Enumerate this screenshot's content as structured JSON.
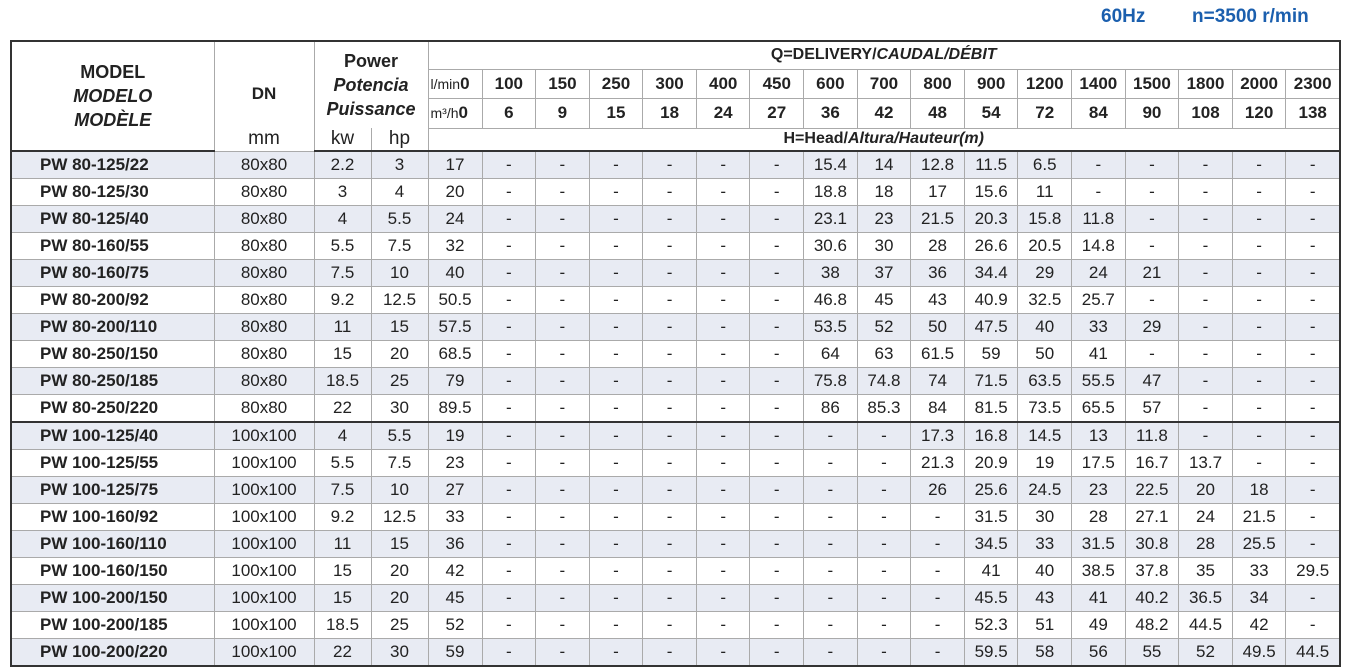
{
  "top": {
    "frequency": "60Hz",
    "speed": "n=3500 r/min"
  },
  "header": {
    "model": [
      "MODEL",
      "MODELO",
      "MODÈLE"
    ],
    "dn": "DN",
    "dn_unit": "mm",
    "power": [
      "Power",
      "Potencia",
      "Puissance"
    ],
    "kw": "kw",
    "hp": "hp",
    "delivery_prefix": "Q=DELIVERY/",
    "delivery_rest": "CAUDAL/DÉBIT",
    "lmin_label": "l/min",
    "m3h_label": "m³/h",
    "lmin": [
      "0",
      "100",
      "150",
      "250",
      "300",
      "400",
      "450",
      "600",
      "700",
      "800",
      "900",
      "1200",
      "1400",
      "1500",
      "1800",
      "2000",
      "2300"
    ],
    "m3h": [
      "0",
      "6",
      "9",
      "15",
      "18",
      "24",
      "27",
      "36",
      "42",
      "48",
      "54",
      "72",
      "84",
      "90",
      "108",
      "120",
      "138"
    ],
    "head_prefix": "H=Head/",
    "head_rest": "Altura/Hauteur(m)"
  },
  "colors": {
    "accent": "#1b5fae",
    "row_alt": "#e8ebf3"
  },
  "rows": [
    {
      "model": "PW 80-125/22",
      "dn": "80x80",
      "kw": "2.2",
      "hp": "3",
      "h": [
        "17",
        "-",
        "-",
        "-",
        "-",
        "-",
        "-",
        "15.4",
        "14",
        "12.8",
        "11.5",
        "6.5",
        "-",
        "-",
        "-",
        "-",
        "-"
      ]
    },
    {
      "model": "PW 80-125/30",
      "dn": "80x80",
      "kw": "3",
      "hp": "4",
      "h": [
        "20",
        "-",
        "-",
        "-",
        "-",
        "-",
        "-",
        "18.8",
        "18",
        "17",
        "15.6",
        "11",
        "-",
        "-",
        "-",
        "-",
        "-"
      ]
    },
    {
      "model": "PW 80-125/40",
      "dn": "80x80",
      "kw": "4",
      "hp": "5.5",
      "h": [
        "24",
        "-",
        "-",
        "-",
        "-",
        "-",
        "-",
        "23.1",
        "23",
        "21.5",
        "20.3",
        "15.8",
        "11.8",
        "-",
        "-",
        "-",
        "-"
      ]
    },
    {
      "model": "PW 80-160/55",
      "dn": "80x80",
      "kw": "5.5",
      "hp": "7.5",
      "h": [
        "32",
        "-",
        "-",
        "-",
        "-",
        "-",
        "-",
        "30.6",
        "30",
        "28",
        "26.6",
        "20.5",
        "14.8",
        "-",
        "-",
        "-",
        "-"
      ]
    },
    {
      "model": "PW 80-160/75",
      "dn": "80x80",
      "kw": "7.5",
      "hp": "10",
      "h": [
        "40",
        "-",
        "-",
        "-",
        "-",
        "-",
        "-",
        "38",
        "37",
        "36",
        "34.4",
        "29",
        "24",
        "21",
        "-",
        "-",
        "-"
      ]
    },
    {
      "model": "PW 80-200/92",
      "dn": "80x80",
      "kw": "9.2",
      "hp": "12.5",
      "h": [
        "50.5",
        "-",
        "-",
        "-",
        "-",
        "-",
        "-",
        "46.8",
        "45",
        "43",
        "40.9",
        "32.5",
        "25.7",
        "-",
        "-",
        "-",
        "-"
      ]
    },
    {
      "model": "PW 80-200/110",
      "dn": "80x80",
      "kw": "11",
      "hp": "15",
      "h": [
        "57.5",
        "-",
        "-",
        "-",
        "-",
        "-",
        "-",
        "53.5",
        "52",
        "50",
        "47.5",
        "40",
        "33",
        "29",
        "-",
        "-",
        "-"
      ]
    },
    {
      "model": "PW 80-250/150",
      "dn": "80x80",
      "kw": "15",
      "hp": "20",
      "h": [
        "68.5",
        "-",
        "-",
        "-",
        "-",
        "-",
        "-",
        "64",
        "63",
        "61.5",
        "59",
        "50",
        "41",
        "-",
        "-",
        "-",
        "-"
      ]
    },
    {
      "model": "PW 80-250/185",
      "dn": "80x80",
      "kw": "18.5",
      "hp": "25",
      "h": [
        "79",
        "-",
        "-",
        "-",
        "-",
        "-",
        "-",
        "75.8",
        "74.8",
        "74",
        "71.5",
        "63.5",
        "55.5",
        "47",
        "-",
        "-",
        "-"
      ]
    },
    {
      "model": "PW 80-250/220",
      "dn": "80x80",
      "kw": "22",
      "hp": "30",
      "h": [
        "89.5",
        "-",
        "-",
        "-",
        "-",
        "-",
        "-",
        "86",
        "85.3",
        "84",
        "81.5",
        "73.5",
        "65.5",
        "57",
        "-",
        "-",
        "-"
      ]
    },
    {
      "model": "PW 100-125/40",
      "dn": "100x100",
      "kw": "4",
      "hp": "5.5",
      "h": [
        "19",
        "-",
        "-",
        "-",
        "-",
        "-",
        "-",
        "-",
        "-",
        "17.3",
        "16.8",
        "14.5",
        "13",
        "11.8",
        "-",
        "-",
        "-"
      ]
    },
    {
      "model": "PW 100-125/55",
      "dn": "100x100",
      "kw": "5.5",
      "hp": "7.5",
      "h": [
        "23",
        "-",
        "-",
        "-",
        "-",
        "-",
        "-",
        "-",
        "-",
        "21.3",
        "20.9",
        "19",
        "17.5",
        "16.7",
        "13.7",
        "-",
        "-"
      ]
    },
    {
      "model": "PW 100-125/75",
      "dn": "100x100",
      "kw": "7.5",
      "hp": "10",
      "h": [
        "27",
        "-",
        "-",
        "-",
        "-",
        "-",
        "-",
        "-",
        "-",
        "26",
        "25.6",
        "24.5",
        "23",
        "22.5",
        "20",
        "18",
        "-"
      ]
    },
    {
      "model": "PW 100-160/92",
      "dn": "100x100",
      "kw": "9.2",
      "hp": "12.5",
      "h": [
        "33",
        "-",
        "-",
        "-",
        "-",
        "-",
        "-",
        "-",
        "-",
        "-",
        "31.5",
        "30",
        "28",
        "27.1",
        "24",
        "21.5",
        "-"
      ]
    },
    {
      "model": "PW 100-160/110",
      "dn": "100x100",
      "kw": "11",
      "hp": "15",
      "h": [
        "36",
        "-",
        "-",
        "-",
        "-",
        "-",
        "-",
        "-",
        "-",
        "-",
        "34.5",
        "33",
        "31.5",
        "30.8",
        "28",
        "25.5",
        "-"
      ]
    },
    {
      "model": "PW 100-160/150",
      "dn": "100x100",
      "kw": "15",
      "hp": "20",
      "h": [
        "42",
        "-",
        "-",
        "-",
        "-",
        "-",
        "-",
        "-",
        "-",
        "-",
        "41",
        "40",
        "38.5",
        "37.8",
        "35",
        "33",
        "29.5"
      ]
    },
    {
      "model": "PW 100-200/150",
      "dn": "100x100",
      "kw": "15",
      "hp": "20",
      "h": [
        "45",
        "-",
        "-",
        "-",
        "-",
        "-",
        "-",
        "-",
        "-",
        "-",
        "45.5",
        "43",
        "41",
        "40.2",
        "36.5",
        "34",
        "-"
      ]
    },
    {
      "model": "PW 100-200/185",
      "dn": "100x100",
      "kw": "18.5",
      "hp": "25",
      "h": [
        "52",
        "-",
        "-",
        "-",
        "-",
        "-",
        "-",
        "-",
        "-",
        "-",
        "52.3",
        "51",
        "49",
        "48.2",
        "44.5",
        "42",
        "-"
      ]
    },
    {
      "model": "PW 100-200/220",
      "dn": "100x100",
      "kw": "22",
      "hp": "30",
      "h": [
        "59",
        "-",
        "-",
        "-",
        "-",
        "-",
        "-",
        "-",
        "-",
        "-",
        "59.5",
        "58",
        "56",
        "55",
        "52",
        "49.5",
        "44.5"
      ]
    }
  ]
}
